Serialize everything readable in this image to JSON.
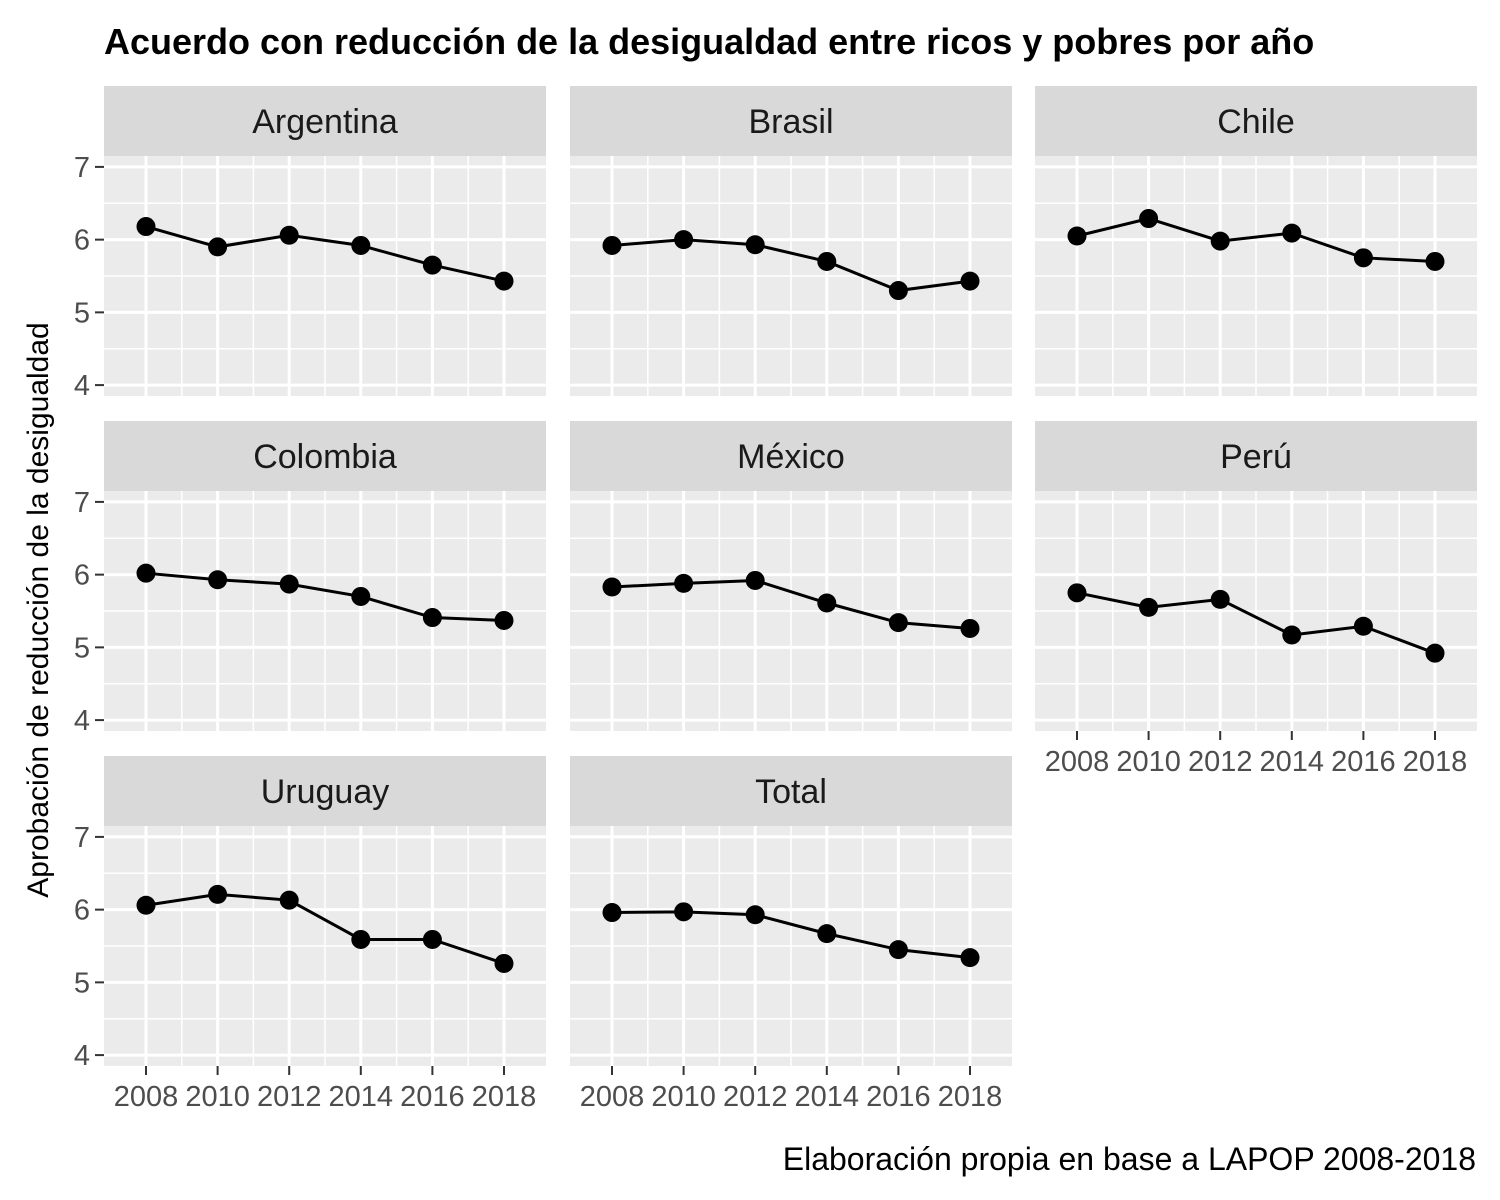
{
  "chart_data": {
    "type": "line",
    "title": "Acuerdo con reducción de la desigualdad entre ricos y pobres por año",
    "ylabel": "Aprobación de reducción de la desigualdad",
    "xlabel": "",
    "caption": "Elaboración propia en base a LAPOP 2008-2018",
    "x": [
      "2008",
      "2010",
      "2012",
      "2014",
      "2016",
      "2018"
    ],
    "yticks": [
      "4",
      "5",
      "6",
      "7"
    ],
    "ylim": [
      3.85,
      7.15
    ],
    "grid": true,
    "colors": {
      "panel": "#ebebeb",
      "strip": "#d9d9d9",
      "grid": "#ffffff",
      "line": "#000000"
    },
    "facets": [
      {
        "name": "Argentina",
        "values": [
          6.18,
          5.9,
          6.06,
          5.92,
          5.65,
          5.43
        ]
      },
      {
        "name": "Brasil",
        "values": [
          5.92,
          6.0,
          5.93,
          5.7,
          5.3,
          5.43
        ]
      },
      {
        "name": "Chile",
        "values": [
          6.05,
          6.29,
          5.98,
          6.09,
          5.75,
          5.7
        ]
      },
      {
        "name": "Colombia",
        "values": [
          6.02,
          5.93,
          5.87,
          5.7,
          5.41,
          5.37
        ]
      },
      {
        "name": "México",
        "values": [
          5.83,
          5.88,
          5.92,
          5.61,
          5.34,
          5.26
        ]
      },
      {
        "name": "Perú",
        "values": [
          5.75,
          5.55,
          5.66,
          5.17,
          5.29,
          4.92
        ]
      },
      {
        "name": "Uruguay",
        "values": [
          6.06,
          6.21,
          6.13,
          5.59,
          5.59,
          5.26
        ]
      },
      {
        "name": "Total",
        "values": [
          5.96,
          5.97,
          5.93,
          5.67,
          5.45,
          5.34
        ]
      }
    ]
  }
}
